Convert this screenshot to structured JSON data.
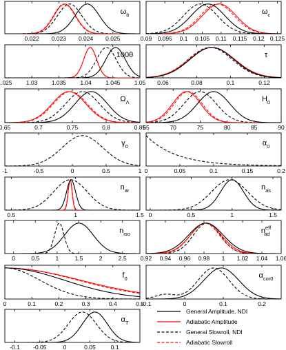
{
  "chart_data": [
    {
      "type": "line",
      "label": "ω",
      "sub": "b",
      "sup": "",
      "xlim": [
        0.021,
        0.026
      ],
      "ticks": [
        0.022,
        0.023,
        0.024,
        0.025
      ],
      "tick_labels": [
        "0.022",
        "0.023",
        "0.024",
        "0.025"
      ],
      "curves": {
        "gen_ndi": {
          "mu": 0.02405,
          "sig": 0.00045
        },
        "adi_amp": {
          "mu": 0.02322,
          "sig": 0.0004
        },
        "gen_slow": {
          "mu": 0.0234,
          "sig": 0.00045
        },
        "adi_slow": {
          "mu": 0.0232,
          "sig": 0.0004
        }
      }
    },
    {
      "type": "line",
      "label": "ω",
      "sub": "c",
      "sup": "",
      "xlim": [
        0.09,
        0.126
      ],
      "ticks": [
        0.09,
        0.095,
        0.1,
        0.105,
        0.11,
        0.115,
        0.12,
        0.125
      ],
      "tick_labels": [
        "0.09",
        "0.095",
        "0.1",
        "0.105",
        "0.11",
        "0.115",
        "0.12",
        "0.125"
      ],
      "curves": {
        "gen_ndi": {
          "mu": 0.1065,
          "sig": 0.0045
        },
        "adi_amp": {
          "mu": 0.1095,
          "sig": 0.0045
        },
        "gen_slow": {
          "mu": 0.1045,
          "sig": 0.0045
        },
        "adi_slow": {
          "mu": 0.109,
          "sig": 0.0045
        }
      }
    },
    {
      "type": "line",
      "label": "100θ",
      "sub": "",
      "sup": "",
      "xlim": [
        1.025,
        1.05
      ],
      "ticks": [
        1.025,
        1.03,
        1.035,
        1.04,
        1.045,
        1.05
      ],
      "tick_labels": [
        "1.025",
        "1.03",
        "1.035",
        "1.04",
        "1.045",
        "1.05"
      ],
      "curves": {
        "gen_ndi": {
          "mu": 1.0455,
          "sig": 0.0018
        },
        "adi_amp": {
          "mu": 1.0408,
          "sig": 0.0012
        },
        "gen_slow": {
          "mu": 1.0438,
          "sig": 0.0018
        },
        "adi_slow": {
          "mu": 1.0408,
          "sig": 0.0012
        }
      }
    },
    {
      "type": "line",
      "label": "τ",
      "sub": "",
      "sup": "",
      "xlim": [
        0.05,
        0.13
      ],
      "ticks": [
        0.06,
        0.08,
        0.1,
        0.12
      ],
      "tick_labels": [
        "0.06",
        "0.08",
        "0.1",
        "0.12"
      ],
      "curves": {
        "gen_ndi": {
          "mu": 0.089,
          "sig": 0.013
        },
        "adi_amp": {
          "mu": 0.089,
          "sig": 0.0135
        },
        "gen_slow": {
          "mu": 0.088,
          "sig": 0.013
        },
        "adi_slow": {
          "mu": 0.089,
          "sig": 0.0135
        }
      }
    },
    {
      "type": "line",
      "label": "Ω",
      "sub": "Λ",
      "sup": "",
      "xlim": [
        0.65,
        0.85
      ],
      "ticks": [
        0.65,
        0.7,
        0.75,
        0.8,
        0.85
      ],
      "tick_labels": [
        "0.65",
        "0.7",
        "0.75",
        "0.8",
        "0.85"
      ],
      "curves": {
        "gen_ndi": {
          "mu": 0.778,
          "sig": 0.024
        },
        "adi_amp": {
          "mu": 0.745,
          "sig": 0.025
        },
        "gen_slow": {
          "mu": 0.765,
          "sig": 0.025
        },
        "adi_slow": {
          "mu": 0.747,
          "sig": 0.025
        }
      }
    },
    {
      "type": "line",
      "label": "H",
      "sub": "0",
      "sup": "",
      "xlim": [
        65,
        90
      ],
      "ticks": [
        65,
        70,
        75,
        80,
        85,
        90
      ],
      "tick_labels": [
        "65",
        "70",
        "75",
        "80",
        "85",
        "90"
      ],
      "curves": {
        "gen_ndi": {
          "mu": 77.5,
          "sig": 3.0
        },
        "adi_amp": {
          "mu": 72.5,
          "sig": 2.6
        },
        "gen_slow": {
          "mu": 75.0,
          "sig": 3.0
        },
        "adi_slow": {
          "mu": 72.8,
          "sig": 2.6
        }
      }
    },
    {
      "type": "line",
      "label": "γ",
      "sub": "0",
      "sup": "",
      "xlim": [
        -1,
        1
      ],
      "ticks": [
        -1,
        -0.5,
        0,
        0.5,
        1
      ],
      "tick_labels": [
        "-1",
        "-0.5",
        "0",
        "0.5",
        "1"
      ],
      "curves": {
        "gen_ndi": null,
        "adi_amp": null,
        "gen_slow": {
          "mu": 0.15,
          "sig": 0.3,
          "peak": 1.0
        },
        "adi_slow": null
      }
    },
    {
      "type": "line",
      "label": "α",
      "sub": "0",
      "sup": "",
      "xlim": [
        0,
        0.2
      ],
      "ticks": [
        0,
        0.05,
        0.1,
        0.15,
        0.2
      ],
      "tick_labels": [
        "0",
        "0.05",
        "0.1",
        "0.15",
        "0.2"
      ],
      "curves": {
        "gen_ndi": null,
        "adi_amp": null,
        "gen_slow": {
          "decay": 0.045,
          "start": 0.0
        },
        "adi_slow": null
      }
    },
    {
      "type": "line",
      "label": "n",
      "sub": "ar",
      "sup": "",
      "xlim": [
        0.45,
        1.5
      ],
      "ticks": [
        0.5,
        1,
        1.5
      ],
      "tick_labels": [
        "0.5",
        "1",
        "1.5"
      ],
      "curves": {
        "gen_ndi": {
          "mu": 0.965,
          "sig": 0.035
        },
        "adi_amp": {
          "mu": 0.958,
          "sig": 0.015
        },
        "gen_slow": {
          "mu": 0.96,
          "sig": 0.13
        },
        "adi_slow": {
          "mu": 0.958,
          "sig": 0.016
        }
      }
    },
    {
      "type": "line",
      "label": "n",
      "sub": "as",
      "sup": "",
      "xlim": [
        -0.05,
        1.6
      ],
      "ticks": [
        0,
        0.5,
        1,
        1.5
      ],
      "tick_labels": [
        "0",
        "0.5",
        "1",
        "1.5"
      ],
      "curves": {
        "gen_ndi": {
          "mu": 1.0,
          "sig": 0.14
        },
        "adi_amp": null,
        "gen_slow": {
          "mu": 0.97,
          "sig": 0.22
        },
        "adi_slow": null
      }
    },
    {
      "type": "line",
      "label": "n",
      "sub": "iso",
      "sup": "",
      "xlim": [
        -0.2,
        2.9
      ],
      "ticks": [
        0,
        0.5,
        1,
        1.5,
        2,
        2.5
      ],
      "tick_labels": [
        "0",
        "0.5",
        "1",
        "1.5",
        "2",
        "2.5"
      ],
      "curves": {
        "gen_ndi": {
          "mu": 1.5,
          "sig": 0.33
        },
        "adi_amp": null,
        "gen_slow": {
          "mu": 1.05,
          "sig": 0.11
        },
        "adi_slow": null
      }
    },
    {
      "type": "line",
      "label": "n",
      "sub": "ad",
      "sup": "eff",
      "xlim": [
        0.92,
        1.06
      ],
      "ticks": [
        0.92,
        0.94,
        0.96,
        0.98,
        1,
        1.02,
        1.04,
        1.06
      ],
      "tick_labels": [
        "0.92",
        "0.94",
        "0.96",
        "0.98",
        "1",
        "1.02",
        "1.04",
        "1.06"
      ],
      "curves": {
        "gen_ndi": {
          "mu": 0.982,
          "sig": 0.018
        },
        "adi_amp": {
          "mu": 0.982,
          "sig": 0.016
        },
        "gen_slow": {
          "mu": 0.983,
          "sig": 0.014
        },
        "adi_slow": {
          "mu": 0.981,
          "sig": 0.015
        }
      }
    },
    {
      "type": "line",
      "label": "f",
      "sub": "0",
      "sup": "",
      "xlim": [
        0,
        0.5
      ],
      "ticks": [
        0,
        0.1,
        0.2,
        0.3,
        0.4,
        0.5
      ],
      "tick_labels": [
        "0",
        "0.1",
        "0.2",
        "0.3",
        "0.4",
        "0.5"
      ],
      "curves": {
        "gen_ndi": {
          "hn": 0.22
        },
        "adi_amp": {
          "hn": 0.28
        },
        "gen_slow": {
          "hn": 0.13
        },
        "adi_slow": {
          "hn": 0.27
        }
      }
    },
    {
      "type": "line",
      "label": "α",
      "sub": "cor0",
      "sup": "",
      "xlim": [
        -0.1,
        0.25
      ],
      "ticks": [
        -0.1,
        0,
        0.1,
        0.2
      ],
      "tick_labels": [
        "-0.1",
        "0",
        "0.1",
        "0.2"
      ],
      "curves": {
        "gen_ndi": {
          "mu": 0.095,
          "sig": 0.045
        },
        "adi_amp": null,
        "gen_slow": {
          "mu": 0.075,
          "sig": 0.04,
          "bump": {
            "mu": -0.05,
            "sig": 0.025,
            "amp": 0.15
          }
        },
        "adi_slow": null
      }
    },
    {
      "type": "line",
      "label": "α",
      "sub": "T",
      "sup": "",
      "xlim": [
        -0.12,
        0.15
      ],
      "ticks": [
        -0.1,
        -0.05,
        0,
        0.05,
        0.1
      ],
      "tick_labels": [
        "-0.1",
        "-0.05",
        "0",
        "0.05",
        "0.1"
      ],
      "curves": {
        "gen_ndi": {
          "mu": 0.06,
          "sig": 0.025
        },
        "adi_amp": null,
        "gen_slow": {
          "mu": 0.035,
          "sig": 0.028
        },
        "adi_slow": null
      }
    }
  ],
  "legend": {
    "entries": [
      {
        "key": "gen_ndi",
        "text": "General Amplitude, NDI",
        "color": "#000000",
        "dash": "solid"
      },
      {
        "key": "adi_amp",
        "text": "Adiabatic Amplitude",
        "color": "#ff0000",
        "dash": "solid"
      },
      {
        "key": "gen_slow",
        "text": "General Slowroll, NDI",
        "color": "#000000",
        "dash": "dashed"
      },
      {
        "key": "adi_slow",
        "text": "Adiabatic Slowroll",
        "color": "#ff0000",
        "dash": "dashed"
      }
    ]
  },
  "colors": {
    "black": "#000000",
    "red": "#ff0000"
  }
}
